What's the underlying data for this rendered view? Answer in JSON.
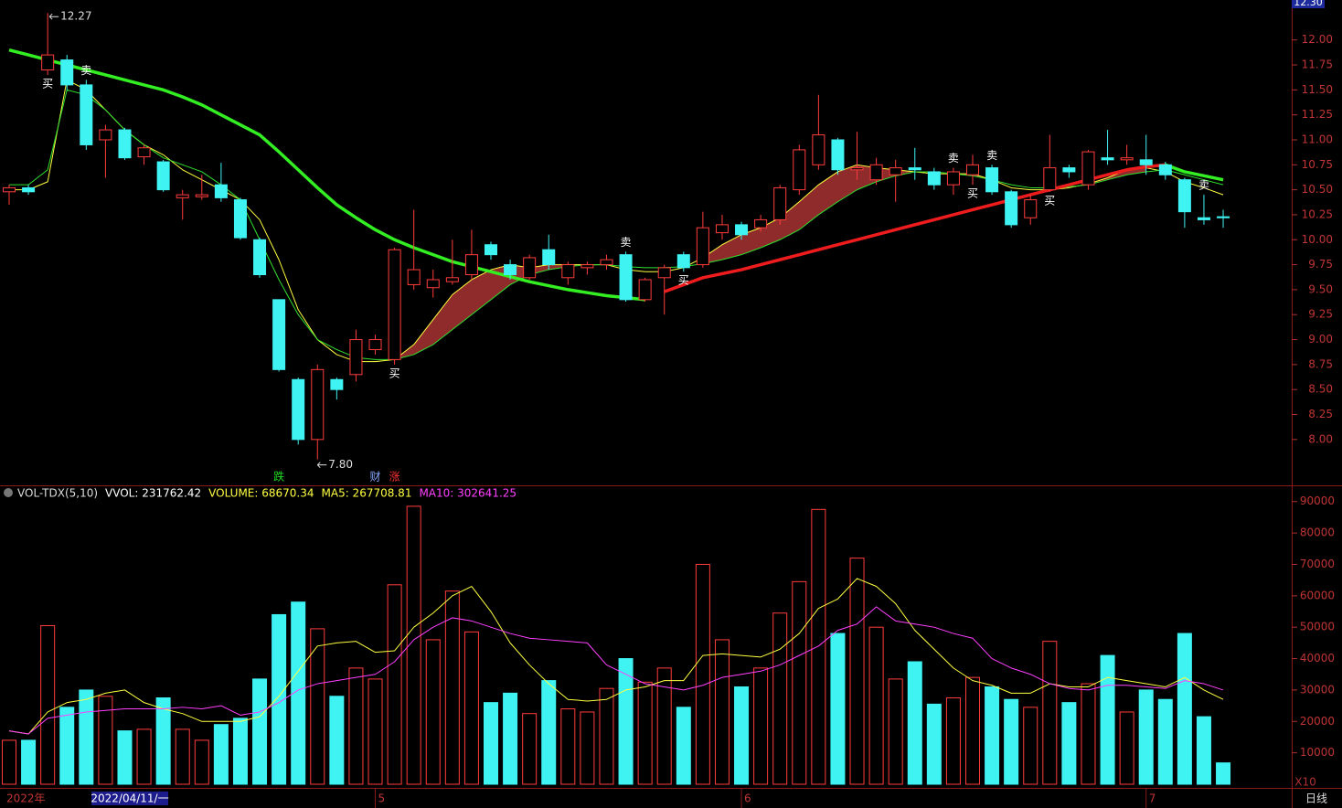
{
  "chart_data": [
    {
      "type": "candlestick",
      "categories": [
        "2022年",
        null,
        null,
        null,
        null,
        null,
        null,
        null,
        null,
        null,
        null,
        null,
        null,
        null,
        null,
        null,
        null,
        null,
        null,
        "5",
        null,
        null,
        null,
        null,
        null,
        null,
        null,
        null,
        null,
        null,
        null,
        null,
        null,
        null,
        null,
        null,
        null,
        null,
        "6",
        null,
        null,
        null,
        null,
        null,
        null,
        null,
        null,
        null,
        null,
        null,
        null,
        null,
        null,
        null,
        null,
        null,
        null,
        null,
        null,
        "7",
        null,
        null,
        null,
        null
      ],
      "open": [
        10.48,
        10.52,
        11.7,
        11.8,
        11.55,
        11.0,
        11.1,
        10.83,
        10.78,
        10.42,
        10.43,
        10.55,
        10.4,
        10.0,
        9.4,
        8.6,
        8.0,
        8.6,
        8.65,
        8.9,
        8.8,
        9.55,
        9.52,
        9.58,
        9.65,
        9.95,
        9.75,
        9.62,
        9.9,
        9.62,
        9.72,
        9.75,
        9.85,
        9.4,
        9.62,
        9.85,
        9.75,
        10.07,
        10.15,
        10.12,
        10.2,
        10.5,
        10.75,
        11.0,
        10.7,
        10.6,
        10.65,
        10.72,
        10.68,
        10.55,
        10.65,
        10.72,
        10.48,
        10.22,
        10.5,
        10.72,
        10.55,
        10.82,
        10.8,
        10.8,
        10.75,
        10.6,
        10.22,
        10.23
      ],
      "high": [
        10.55,
        10.55,
        12.27,
        11.85,
        11.6,
        11.15,
        11.12,
        10.95,
        10.8,
        10.5,
        10.65,
        10.77,
        10.42,
        10.02,
        9.4,
        8.62,
        8.75,
        8.62,
        9.1,
        9.05,
        9.92,
        10.3,
        9.7,
        10.0,
        10.1,
        9.98,
        9.8,
        9.85,
        10.05,
        9.78,
        9.78,
        9.85,
        9.88,
        9.62,
        9.75,
        9.88,
        10.28,
        10.25,
        10.18,
        10.25,
        10.55,
        10.95,
        11.45,
        11.02,
        11.08,
        10.82,
        10.8,
        10.92,
        10.72,
        10.72,
        10.85,
        10.75,
        10.5,
        10.45,
        11.05,
        10.75,
        10.9,
        11.1,
        10.95,
        11.05,
        10.78,
        10.62,
        10.45,
        10.3
      ],
      "low": [
        10.35,
        10.45,
        11.65,
        11.5,
        10.9,
        10.62,
        10.8,
        10.75,
        10.48,
        10.2,
        10.4,
        10.38,
        10.0,
        9.62,
        8.68,
        7.95,
        7.8,
        8.4,
        8.58,
        8.85,
        8.75,
        9.5,
        9.42,
        9.55,
        9.6,
        9.8,
        9.6,
        9.6,
        9.7,
        9.55,
        9.65,
        9.7,
        9.38,
        9.38,
        9.25,
        9.68,
        9.72,
        10.0,
        10.0,
        10.08,
        10.15,
        10.45,
        10.7,
        10.65,
        10.6,
        10.55,
        10.38,
        10.6,
        10.5,
        10.45,
        10.55,
        10.45,
        10.12,
        10.15,
        10.48,
        10.62,
        10.5,
        10.75,
        10.75,
        10.65,
        10.6,
        10.12,
        10.15,
        10.12
      ],
      "close": [
        10.52,
        10.48,
        11.85,
        11.55,
        10.95,
        11.1,
        10.82,
        10.92,
        10.5,
        10.45,
        10.45,
        10.42,
        10.02,
        9.65,
        8.7,
        8.0,
        8.7,
        8.5,
        9.0,
        9.0,
        9.9,
        9.7,
        9.6,
        9.62,
        9.85,
        9.85,
        9.65,
        9.82,
        9.75,
        9.75,
        9.75,
        9.8,
        9.4,
        9.6,
        9.72,
        9.72,
        10.12,
        10.15,
        10.05,
        10.2,
        10.52,
        10.9,
        11.05,
        10.7,
        10.72,
        10.75,
        10.72,
        10.7,
        10.55,
        10.68,
        10.75,
        10.48,
        10.15,
        10.4,
        10.72,
        10.68,
        10.88,
        10.8,
        10.82,
        10.75,
        10.65,
        10.28,
        10.2,
        10.22
      ],
      "up_color": "#ff3c3c",
      "down_color": "#3ff3f3",
      "lines": [
        {
          "color": "#ffff40",
          "width": 1,
          "values": [
            10.5,
            10.5,
            10.58,
            11.6,
            11.5,
            11.3,
            11.1,
            10.95,
            10.85,
            10.7,
            10.6,
            10.5,
            10.4,
            10.2,
            9.8,
            9.3,
            9.0,
            8.85,
            8.78,
            8.78,
            8.8,
            8.95,
            9.2,
            9.45,
            9.6,
            9.7,
            9.75,
            9.72,
            9.75,
            9.75,
            9.75,
            9.75,
            9.7,
            9.68,
            9.68,
            9.72,
            9.82,
            9.95,
            10.05,
            10.12,
            10.22,
            10.38,
            10.55,
            10.68,
            10.75,
            10.72,
            10.7,
            10.68,
            10.66,
            10.66,
            10.66,
            10.6,
            10.52,
            10.5,
            10.5,
            10.52,
            10.56,
            10.62,
            10.7,
            10.72,
            10.68,
            10.58,
            10.52,
            10.45
          ]
        },
        {
          "color": "#30e030",
          "width": 1,
          "values": [
            10.55,
            10.55,
            10.7,
            11.5,
            11.45,
            11.3,
            11.1,
            10.95,
            10.82,
            10.75,
            10.68,
            10.55,
            10.4,
            10.0,
            9.6,
            9.25,
            9.0,
            8.9,
            8.82,
            8.8,
            8.8,
            8.85,
            8.95,
            9.1,
            9.25,
            9.4,
            9.55,
            9.65,
            9.7,
            9.73,
            9.75,
            9.75,
            9.73,
            9.72,
            9.72,
            9.73,
            9.76,
            9.8,
            9.85,
            9.92,
            10.0,
            10.1,
            10.25,
            10.38,
            10.5,
            10.58,
            10.64,
            10.68,
            10.68,
            10.66,
            10.64,
            10.6,
            10.55,
            10.52,
            10.52,
            10.53,
            10.55,
            10.6,
            10.65,
            10.68,
            10.7,
            10.65,
            10.6,
            10.55
          ]
        },
        {
          "color": "#33ee22",
          "width": 3.5,
          "values": [
            11.9,
            11.85,
            11.8,
            11.75,
            11.7,
            11.65,
            11.6,
            11.55,
            11.5,
            11.43,
            11.35,
            11.25,
            11.15,
            11.05,
            10.88,
            10.7,
            10.52,
            10.35,
            10.22,
            10.1,
            10.0,
            9.92,
            9.85,
            9.78,
            9.73,
            9.68,
            9.63,
            9.58,
            9.54,
            9.5,
            9.47,
            9.44,
            9.42,
            9.4,
            null,
            null,
            null,
            null,
            null,
            null,
            null,
            null,
            null,
            null,
            null,
            null,
            null,
            null,
            null,
            null,
            null,
            null,
            null,
            null,
            null,
            null,
            null,
            null,
            null,
            null,
            10.75,
            10.68,
            10.64,
            10.6
          ]
        },
        {
          "color": "#ee1c1c",
          "width": 3.5,
          "values": [
            null,
            null,
            null,
            null,
            null,
            null,
            null,
            null,
            null,
            null,
            null,
            null,
            null,
            null,
            null,
            null,
            null,
            null,
            null,
            null,
            null,
            null,
            null,
            null,
            null,
            null,
            null,
            null,
            null,
            null,
            null,
            null,
            null,
            null,
            9.48,
            9.55,
            9.62,
            9.66,
            9.7,
            9.75,
            9.8,
            9.85,
            9.9,
            9.95,
            10.0,
            10.05,
            10.1,
            10.15,
            10.2,
            10.25,
            10.3,
            10.35,
            10.4,
            10.45,
            10.5,
            10.55,
            10.6,
            10.65,
            10.7,
            10.73,
            10.75,
            null,
            null,
            null
          ]
        }
      ],
      "band_color": "#a83232",
      "high_label": "12.27",
      "low_label": "7.80",
      "signals": [
        {
          "index": 2,
          "label": "买"
        },
        {
          "index": 4,
          "label": "卖"
        },
        {
          "index": 20,
          "label": "买"
        },
        {
          "index": 32,
          "label": "卖"
        },
        {
          "index": 35,
          "label": "买"
        },
        {
          "index": 49,
          "label": "卖"
        },
        {
          "index": 50,
          "label": "买"
        },
        {
          "index": 51,
          "label": "卖"
        },
        {
          "index": 54,
          "label": "买"
        },
        {
          "index": 62,
          "label": "卖"
        }
      ],
      "events": [
        {
          "index": 14,
          "label": "跌",
          "color": "#22dd22"
        },
        {
          "index": 19,
          "label": "财",
          "color": "#88aaff"
        },
        {
          "index": 20,
          "label": "涨",
          "color": "#ff3333"
        }
      ],
      "top_label": "12.30",
      "cursor_label": "2022/04/11/一",
      "period_label": "日线",
      "ylim": [
        7.55,
        12.4
      ],
      "yticks": [
        {
          "value": 8,
          "label": "8.00"
        },
        {
          "value": 8.25,
          "label": "8.25"
        },
        {
          "value": 8.5,
          "label": "8.50"
        },
        {
          "value": 8.75,
          "label": "8.75"
        },
        {
          "value": 9,
          "label": "9.00"
        },
        {
          "value": 9.25,
          "label": "9.25"
        },
        {
          "value": 9.5,
          "label": "9.50"
        },
        {
          "value": 9.75,
          "label": "9.75"
        },
        {
          "value": 10,
          "label": "10.00"
        },
        {
          "value": 10.25,
          "label": "10.25"
        },
        {
          "value": 10.5,
          "label": "10.50"
        },
        {
          "value": 10.75,
          "label": "10.75"
        },
        {
          "value": 11,
          "label": "11.00"
        },
        {
          "value": 11.25,
          "label": "11.25"
        },
        {
          "value": 11.5,
          "label": "11.50"
        },
        {
          "value": 11.75,
          "label": "11.75"
        },
        {
          "value": 12,
          "label": "12.00"
        }
      ]
    },
    {
      "type": "bar",
      "header": [
        {
          "text": "VOL-TDX(5,10)",
          "color": "#dddddd"
        },
        {
          "text": "VVOL: 231762.42",
          "color": "#ffffff"
        },
        {
          "text": "VOLUME: 68670.34",
          "color": "#ffff40"
        },
        {
          "text": "MA5: 267708.81",
          "color": "#ffff40"
        },
        {
          "text": "MA10: 302641.25",
          "color": "#ff40ff"
        }
      ],
      "values": [
        14000,
        14000,
        50500,
        24500,
        30000,
        28000,
        17000,
        17500,
        27500,
        17500,
        14000,
        19000,
        21000,
        33500,
        54000,
        58000,
        49500,
        28000,
        37000,
        33500,
        63500,
        88500,
        46000,
        61500,
        48500,
        26000,
        29000,
        22500,
        33000,
        24000,
        23000,
        30500,
        40000,
        32500,
        37000,
        24500,
        70000,
        46000,
        31000,
        37000,
        54500,
        64500,
        87500,
        48000,
        72000,
        50000,
        33500,
        39000,
        25500,
        27500,
        34000,
        31000,
        27000,
        24500,
        45500,
        26000,
        32000,
        41000,
        23000,
        30000,
        27000,
        48000,
        21500,
        6800
      ],
      "lines": [
        {
          "color": "#ffff40",
          "values": [
            17000,
            16000,
            23000,
            26000,
            27000,
            29000,
            30000,
            26000,
            24000,
            22500,
            20000,
            20000,
            20000,
            21500,
            28000,
            36000,
            44000,
            45000,
            45500,
            42000,
            42500,
            50000,
            54500,
            60000,
            63000,
            55000,
            45000,
            38000,
            32000,
            27000,
            26500,
            27000,
            30000,
            31000,
            33000,
            33000,
            41000,
            41500,
            41000,
            40500,
            43000,
            48000,
            56000,
            59000,
            65500,
            63000,
            57500,
            49000,
            43000,
            37000,
            33000,
            31500,
            29000,
            29000,
            32000,
            31000,
            31000,
            34000,
            33000,
            32000,
            31000,
            34000,
            30000,
            27000
          ]
        },
        {
          "color": "#ff40ff",
          "values": [
            17000,
            16000,
            21000,
            22000,
            23000,
            23500,
            24000,
            24000,
            24000,
            24500,
            24000,
            25000,
            22000,
            23000,
            26000,
            30000,
            32000,
            33000,
            34000,
            35000,
            39000,
            46000,
            50000,
            53000,
            52000,
            50000,
            48000,
            46500,
            46000,
            45500,
            45000,
            38000,
            35000,
            32000,
            31000,
            30000,
            31500,
            34000,
            35000,
            36000,
            38000,
            41000,
            44000,
            49000,
            51000,
            56500,
            52000,
            51000,
            50000,
            48000,
            46500,
            40000,
            37000,
            35000,
            32000,
            30500,
            30000,
            31500,
            31500,
            31000,
            30500,
            33000,
            32000,
            30000
          ]
        }
      ],
      "scale_label": "X10",
      "ylim": [
        0,
        94000
      ],
      "yticks": [
        10000,
        20000,
        30000,
        40000,
        50000,
        60000,
        70000,
        80000,
        90000
      ]
    }
  ]
}
